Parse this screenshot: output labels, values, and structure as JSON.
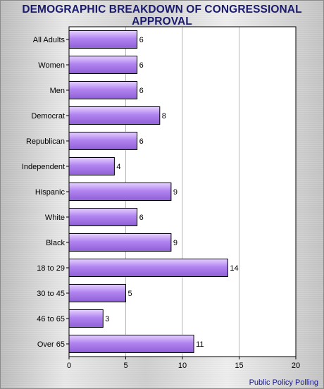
{
  "chart_data": {
    "type": "bar",
    "orientation": "horizontal",
    "title": "DEMOGRAPHIC BREAKDOWN OF CONGRESSIONAL APPROVAL",
    "categories": [
      "All Adults",
      "Women",
      "Men",
      "Democrat",
      "Republican",
      "Independent",
      "Hispanic",
      "White",
      "Black",
      "18 to 29",
      "30 to 45",
      "46 to 65",
      "Over 65"
    ],
    "values": [
      6,
      6,
      6,
      8,
      6,
      4,
      9,
      6,
      9,
      14,
      5,
      3,
      11
    ],
    "data_labels": [
      "6",
      "6",
      "6",
      "8",
      "6",
      "4",
      "9",
      "6",
      "9",
      "14",
      "5",
      "3",
      "11"
    ],
    "xlim": [
      0,
      20
    ],
    "xticks": [
      "0",
      "5",
      "10",
      "15",
      "20"
    ],
    "grid": "vertical",
    "bar_color": "#b184f0",
    "xlabel": "",
    "ylabel": ""
  },
  "source": "Public Policy Polling"
}
